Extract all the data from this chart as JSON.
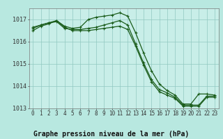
{
  "title": "Graphe pression niveau de la mer (hPa)",
  "background_color": "#b8e8e0",
  "plot_bg_color": "#c8eee8",
  "grid_color": "#90c8c0",
  "line_color": "#1a5c1a",
  "marker": "+",
  "hours": [
    0,
    1,
    2,
    3,
    4,
    5,
    6,
    7,
    8,
    9,
    10,
    11,
    12,
    13,
    14,
    15,
    16,
    17,
    18,
    19,
    20,
    21,
    22,
    23
  ],
  "series": [
    [
      1016.65,
      1016.75,
      1016.85,
      1016.95,
      1016.7,
      1016.6,
      1016.65,
      1017.0,
      1017.1,
      1017.15,
      1017.2,
      1017.3,
      1017.15,
      1016.4,
      1015.5,
      1014.7,
      1014.1,
      1013.8,
      1013.6,
      1013.2,
      1013.2,
      1013.65,
      1013.65,
      1013.6
    ],
    [
      1016.6,
      1016.75,
      1016.85,
      1016.9,
      1016.6,
      1016.55,
      1016.55,
      1016.6,
      1016.65,
      1016.75,
      1016.85,
      1016.95,
      1016.75,
      1015.9,
      1015.05,
      1014.3,
      1013.85,
      1013.7,
      1013.5,
      1013.15,
      1013.15,
      1013.15,
      1013.55,
      1013.55
    ],
    [
      1016.5,
      1016.7,
      1016.8,
      1016.95,
      1016.65,
      1016.5,
      1016.5,
      1016.5,
      1016.55,
      1016.6,
      1016.65,
      1016.7,
      1016.55,
      1015.8,
      1014.95,
      1014.2,
      1013.75,
      1013.6,
      1013.45,
      1013.1,
      1013.1,
      1013.1,
      1013.5,
      1013.5
    ]
  ],
  "ylim": [
    1013.0,
    1017.5
  ],
  "yticks": [
    1013,
    1014,
    1015,
    1016,
    1017
  ],
  "xticks": [
    0,
    1,
    2,
    3,
    4,
    5,
    6,
    7,
    8,
    9,
    10,
    11,
    12,
    13,
    14,
    15,
    16,
    17,
    18,
    19,
    20,
    21,
    22,
    23
  ],
  "title_fontsize": 7,
  "tick_fontsize": 5.5,
  "line_width": 0.9,
  "marker_size": 2.5,
  "figsize": [
    3.2,
    2.0
  ],
  "dpi": 100
}
